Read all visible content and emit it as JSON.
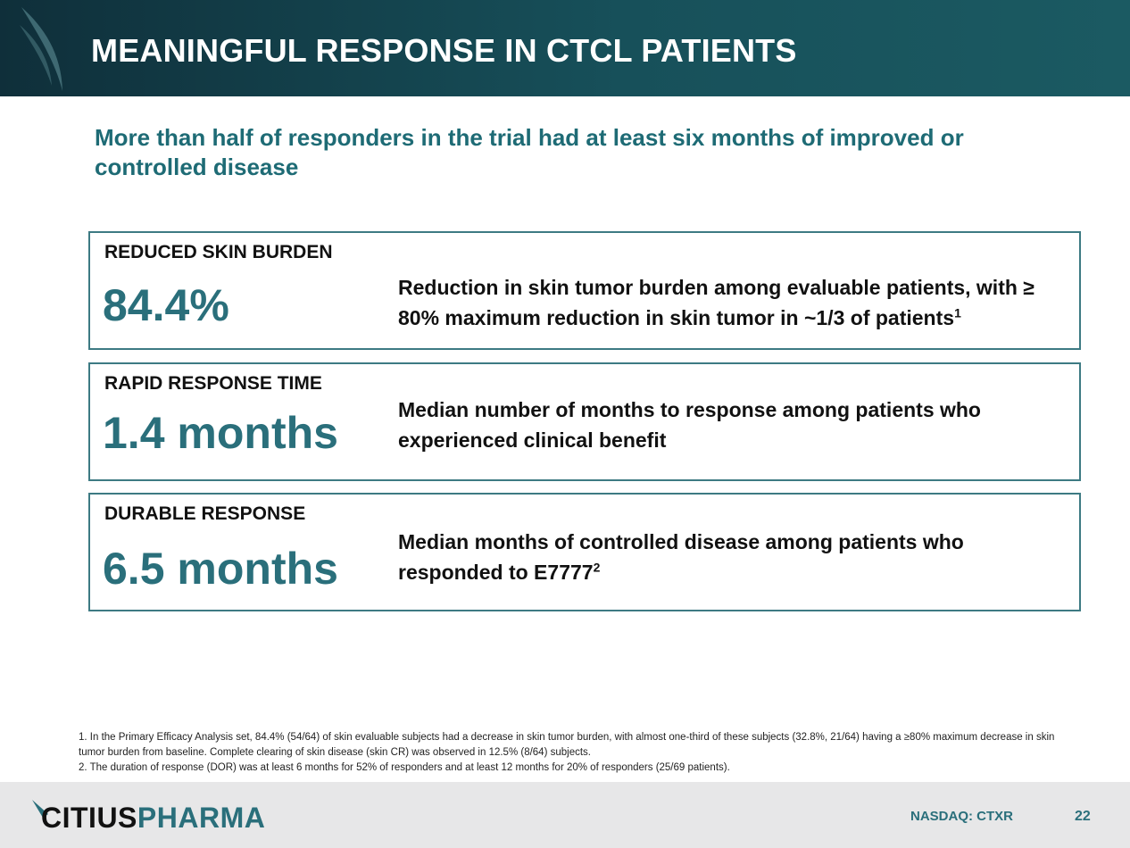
{
  "header": {
    "title": "MEANINGFUL RESPONSE IN CTCL PATIENTS"
  },
  "subtitle": "More than half of responders in the trial had at least six months of improved or controlled disease",
  "cards": [
    {
      "label": "REDUCED SKIN BURDEN",
      "value": "84.4%",
      "desc": "Reduction in skin tumor burden among evaluable patients, with ≥ 80% maximum reduction in skin tumor in ~1/3 of patients",
      "sup": "1"
    },
    {
      "label": "RAPID RESPONSE TIME",
      "value": "1.4 months",
      "desc": "Median number of months to response among patients who experienced clinical benefit",
      "sup": ""
    },
    {
      "label": "DURABLE RESPONSE",
      "value": "6.5 months",
      "desc": "Median months of controlled disease among patients who responded to E7777",
      "sup": "2"
    }
  ],
  "footnotes": [
    "1. In the Primary Efficacy Analysis set, 84.4% (54/64) of skin evaluable subjects had a decrease in skin tumor burden, with almost one-third of these subjects (32.8%, 21/64) having a ≥80% maximum decrease in skin tumor burden from baseline. Complete clearing of skin disease (skin CR) was observed in 12.5% (8/64) subjects.",
    "2. The duration of response (DOR) was at least 6 months for 52% of responders and at least 12 months for 20% of responders (25/69 patients)."
  ],
  "footer": {
    "logo_part1": "CITIUS",
    "logo_part2": "PHARMA",
    "nasdaq": "NASDAQ: CTXR",
    "page_number": "22"
  },
  "colors": {
    "header_dark": "#0f2f3a",
    "header_teal": "#1b5a62",
    "accent_teal": "#2a6f7b",
    "subtitle_teal": "#1e6b75",
    "border": "#3d7a83",
    "footer_bg": "#e7e7e8"
  }
}
